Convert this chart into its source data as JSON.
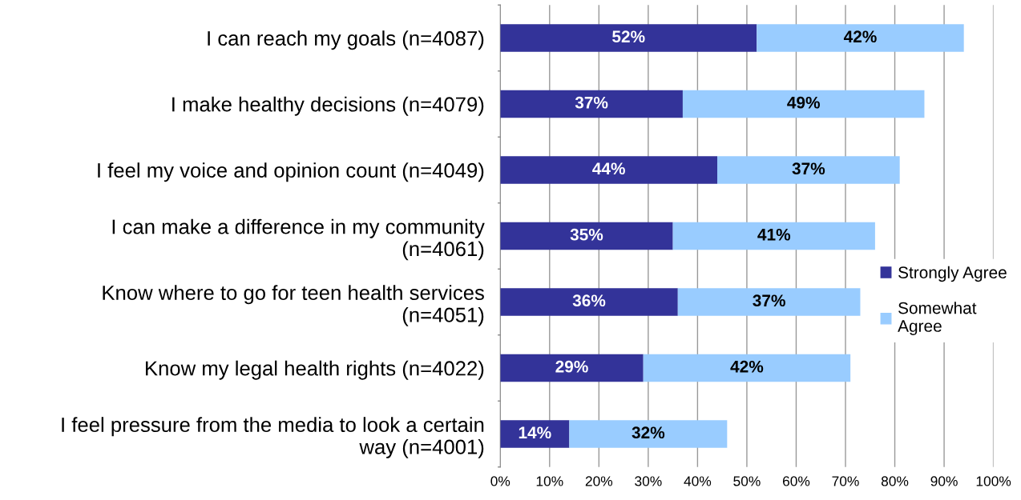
{
  "chart_data": {
    "type": "bar",
    "orientation": "horizontal",
    "stacked": true,
    "categories": [
      "I can reach my goals (n=4087)",
      "I make healthy decisions (n=4079)",
      "I feel my voice and opinion count (n=4049)",
      "I can make a difference in my community\n(n=4061)",
      "Know where to go for teen health services\n(n=4051)",
      "Know my legal health rights (n=4022)",
      "I feel pressure from the media to look a certain\nway (n=4001)"
    ],
    "series": [
      {
        "name": "Strongly Agree",
        "color": "#333399",
        "values": [
          52,
          37,
          44,
          35,
          36,
          29,
          14
        ],
        "value_labels": [
          "52%",
          "37%",
          "44%",
          "35%",
          "36%",
          "29%",
          "14%"
        ]
      },
      {
        "name": "Somewhat Agree",
        "color": "#99ccff",
        "values": [
          42,
          49,
          37,
          41,
          37,
          42,
          32
        ],
        "value_labels": [
          "42%",
          "49%",
          "37%",
          "41%",
          "37%",
          "42%",
          "32%"
        ]
      }
    ],
    "xlim": [
      0,
      100
    ],
    "xticks": [
      {
        "value": 0,
        "label": "0%"
      },
      {
        "value": 10,
        "label": "10%"
      },
      {
        "value": 20,
        "label": "20%"
      },
      {
        "value": 30,
        "label": "30%"
      },
      {
        "value": 40,
        "label": "40%"
      },
      {
        "value": 50,
        "label": "50%"
      },
      {
        "value": 60,
        "label": "60%"
      },
      {
        "value": 70,
        "label": "70%"
      },
      {
        "value": 80,
        "label": "80%"
      },
      {
        "value": 90,
        "label": "90%"
      },
      {
        "value": 100,
        "label": "100%"
      }
    ],
    "grid": "x",
    "legend": "right"
  }
}
